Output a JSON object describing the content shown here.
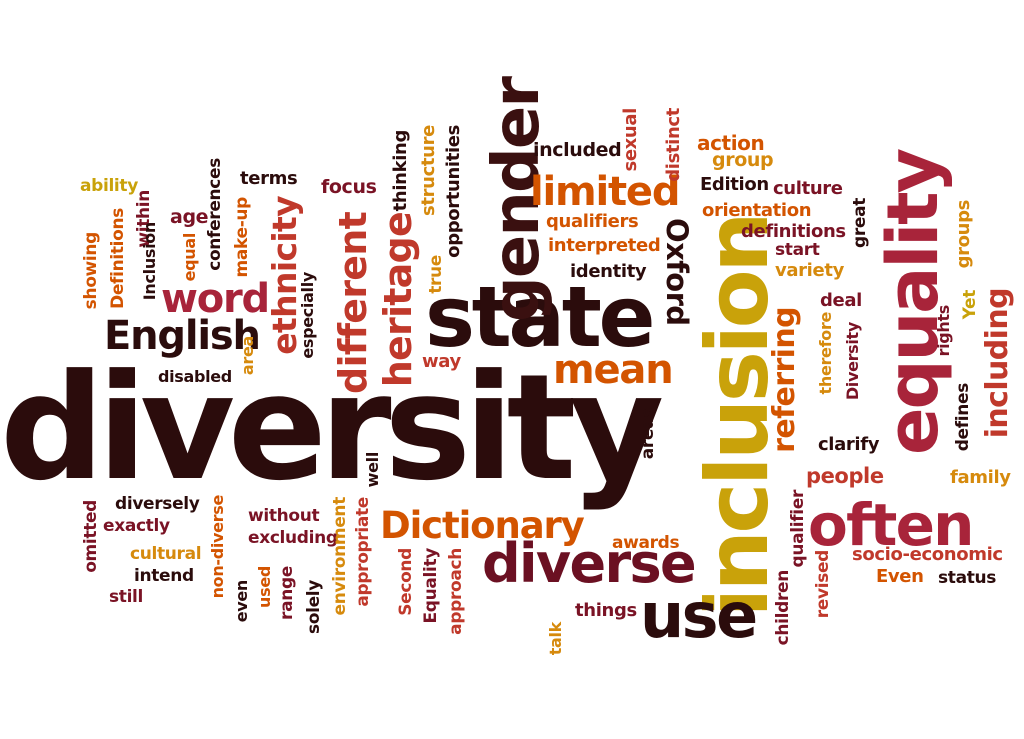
{
  "palette": {
    "dark": "#2b0c0c",
    "maroon": "#7a1325",
    "red": "#c0392b",
    "crimson": "#a8243a",
    "orange": "#d35400",
    "amber": "#d68a0d",
    "gold": "#c9a20a"
  },
  "words": [
    {
      "text": "diversity",
      "color": "#2b0c0c"
    },
    {
      "text": "state",
      "color": "#2b0c0c"
    },
    {
      "text": "inclusion",
      "color": "#c9a20a"
    },
    {
      "text": "equality",
      "color": "#a8243a"
    },
    {
      "text": "gender",
      "color": "#3a1010"
    },
    {
      "text": "diverse",
      "color": "#6b1022"
    },
    {
      "text": "use",
      "color": "#2b0c0c"
    },
    {
      "text": "often",
      "color": "#a8243a"
    },
    {
      "text": "Dictionary",
      "color": "#d35400"
    },
    {
      "text": "English",
      "color": "#2b0c0c"
    },
    {
      "text": "mean",
      "color": "#d35400"
    },
    {
      "text": "limited",
      "color": "#d35400"
    },
    {
      "text": "word",
      "color": "#a8243a"
    },
    {
      "text": "different",
      "color": "#c0392b"
    },
    {
      "text": "heritage",
      "color": "#c0392b"
    },
    {
      "text": "ethnicity",
      "color": "#c0392b"
    },
    {
      "text": "referring",
      "color": "#d35400"
    },
    {
      "text": "including",
      "color": "#c0392b"
    },
    {
      "text": "Oxford",
      "color": "#2b0c0c"
    },
    {
      "text": "ability",
      "color": "#c9a20a"
    },
    {
      "text": "focus",
      "color": "#7a1325"
    },
    {
      "text": "terms",
      "color": "#2b0c0c"
    },
    {
      "text": "age",
      "color": "#7a1325"
    },
    {
      "text": "included",
      "color": "#2b0c0c"
    },
    {
      "text": "action",
      "color": "#d35400"
    },
    {
      "text": "group",
      "color": "#d68a0d"
    },
    {
      "text": "Edition",
      "color": "#2b0c0c"
    },
    {
      "text": "culture",
      "color": "#7a1325"
    },
    {
      "text": "orientation",
      "color": "#d35400"
    },
    {
      "text": "definitions",
      "color": "#7a1325"
    },
    {
      "text": "start",
      "color": "#7a1325"
    },
    {
      "text": "variety",
      "color": "#d68a0d"
    },
    {
      "text": "qualifiers",
      "color": "#d35400"
    },
    {
      "text": "interpreted",
      "color": "#d35400"
    },
    {
      "text": "identity",
      "color": "#2b0c0c"
    },
    {
      "text": "deal",
      "color": "#7a1325"
    },
    {
      "text": "clarify",
      "color": "#2b0c0c"
    },
    {
      "text": "people",
      "color": "#c0392b"
    },
    {
      "text": "family",
      "color": "#d68a0d"
    },
    {
      "text": "disabled",
      "color": "#2b0c0c"
    },
    {
      "text": "way",
      "color": "#c0392b"
    },
    {
      "text": "diversely",
      "color": "#2b0c0c"
    },
    {
      "text": "exactly",
      "color": "#7a1325"
    },
    {
      "text": "without",
      "color": "#7a1325"
    },
    {
      "text": "excluding",
      "color": "#7a1325"
    },
    {
      "text": "cultural",
      "color": "#d68a0d"
    },
    {
      "text": "intend",
      "color": "#2b0c0c"
    },
    {
      "text": "still",
      "color": "#7a1325"
    },
    {
      "text": "awards",
      "color": "#d35400"
    },
    {
      "text": "things",
      "color": "#7a1325"
    },
    {
      "text": "socio-economic",
      "color": "#c0392b"
    },
    {
      "text": "Even",
      "color": "#d35400"
    },
    {
      "text": "status",
      "color": "#2b0c0c"
    },
    {
      "text": "sexual",
      "color": "#c0392b"
    },
    {
      "text": "distinct",
      "color": "#c0392b"
    },
    {
      "text": "showing",
      "color": "#d35400"
    },
    {
      "text": "Definitions",
      "color": "#d35400"
    },
    {
      "text": "within",
      "color": "#7a1325"
    },
    {
      "text": "Inclusion",
      "color": "#2b0c0c"
    },
    {
      "text": "equal",
      "color": "#d35400"
    },
    {
      "text": "conferences",
      "color": "#2b0c0c"
    },
    {
      "text": "make-up",
      "color": "#d35400"
    },
    {
      "text": "especially",
      "color": "#2b0c0c"
    },
    {
      "text": "area",
      "color": "#d68a0d"
    },
    {
      "text": "thinking",
      "color": "#2b0c0c"
    },
    {
      "text": "structure",
      "color": "#d68a0d"
    },
    {
      "text": "opportunities",
      "color": "#2b0c0c"
    },
    {
      "text": "true",
      "color": "#d68a0d"
    },
    {
      "text": "great",
      "color": "#2b0c0c"
    },
    {
      "text": "groups",
      "color": "#d68a0d"
    },
    {
      "text": "rights",
      "color": "#7a1325"
    },
    {
      "text": "Yet",
      "color": "#c9a20a"
    },
    {
      "text": "therefore",
      "color": "#d68a0d"
    },
    {
      "text": "Diversity",
      "color": "#7a1325"
    },
    {
      "text": "defines",
      "color": "#2b0c0c"
    },
    {
      "text": "areas",
      "color": "#2b0c0c"
    },
    {
      "text": "well",
      "color": "#2b0c0c"
    },
    {
      "text": "omitted",
      "color": "#7a1325"
    },
    {
      "text": "non-diverse",
      "color": "#d35400"
    },
    {
      "text": "even",
      "color": "#2b0c0c"
    },
    {
      "text": "used",
      "color": "#d35400"
    },
    {
      "text": "range",
      "color": "#7a1325"
    },
    {
      "text": "solely",
      "color": "#2b0c0c"
    },
    {
      "text": "environment",
      "color": "#d68a0d"
    },
    {
      "text": "appropriate",
      "color": "#c0392b"
    },
    {
      "text": "Second",
      "color": "#c0392b"
    },
    {
      "text": "Equality",
      "color": "#7a1325"
    },
    {
      "text": "approach",
      "color": "#c0392b"
    },
    {
      "text": "talk",
      "color": "#d68a0d"
    },
    {
      "text": "children",
      "color": "#7a1325"
    },
    {
      "text": "qualifier",
      "color": "#7a1325"
    },
    {
      "text": "revised",
      "color": "#c0392b"
    }
  ]
}
